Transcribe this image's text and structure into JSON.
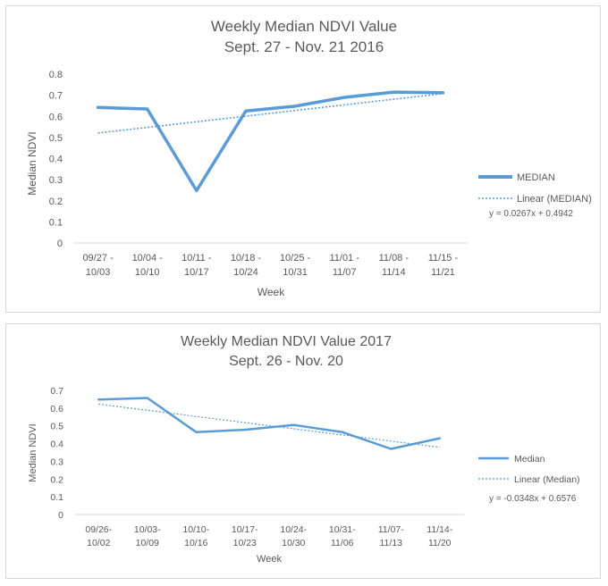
{
  "chart_data": [
    {
      "type": "line",
      "title": "Weekly Median NDVI Value",
      "subtitle": "Sept. 27 - Nov. 21 2016",
      "xlabel": "Week",
      "ylabel": "Median NDVI",
      "ylim": [
        0,
        0.8
      ],
      "yticks": [
        "0",
        "0.1",
        "0.2",
        "0.3",
        "0.4",
        "0.5",
        "0.6",
        "0.7",
        "0.8"
      ],
      "categories": [
        [
          "09/27 -",
          "10/03"
        ],
        [
          "10/04 -",
          "10/10"
        ],
        [
          "10/11 -",
          "10/17"
        ],
        [
          "10/18 -",
          "10/24"
        ],
        [
          "10/25 -",
          "10/31"
        ],
        [
          "11/01 -",
          "11/07"
        ],
        [
          "11/08 -",
          "11/14"
        ],
        [
          "11/15 -",
          "11/21"
        ]
      ],
      "series": [
        {
          "name": "MEDIAN",
          "values": [
            0.642,
            0.635,
            0.248,
            0.625,
            0.648,
            0.69,
            0.715,
            0.712
          ],
          "color": "#5b9bd5"
        }
      ],
      "trendline": {
        "name": "Linear (MEDIAN)",
        "equation": "y = 0.0267x + 0.4942",
        "slope": 0.0267,
        "intercept": 0.4942
      },
      "grid": false,
      "legend": "right"
    },
    {
      "type": "line",
      "title": "Weekly Median NDVI Value 2017",
      "subtitle": "Sept. 26 - Nov. 20",
      "xlabel": "Week",
      "ylabel": "Median NDVI",
      "ylim": [
        0,
        0.7
      ],
      "yticks": [
        "0",
        "0.1",
        "0.2",
        "0.3",
        "0.4",
        "0.5",
        "0.6",
        "0.7"
      ],
      "categories": [
        [
          "09/26-",
          "10/02"
        ],
        [
          "10/03-",
          "10/09"
        ],
        [
          "10/10-",
          "10/16"
        ],
        [
          "10/17-",
          "10/23"
        ],
        [
          "10/24-",
          "10/30"
        ],
        [
          "10/31-",
          "11/06"
        ],
        [
          "11/07-",
          "11/13"
        ],
        [
          "11/14-",
          "11/20"
        ]
      ],
      "series": [
        {
          "name": "Median",
          "values": [
            0.648,
            0.657,
            0.465,
            0.478,
            0.505,
            0.465,
            0.37,
            0.43
          ],
          "color": "#5b9bd5"
        }
      ],
      "trendline": {
        "name": "Linear (Median)",
        "equation": "y = -0.0348x + 0.6576",
        "slope": -0.0348,
        "intercept": 0.6576
      },
      "grid": false,
      "legend": "right"
    }
  ]
}
